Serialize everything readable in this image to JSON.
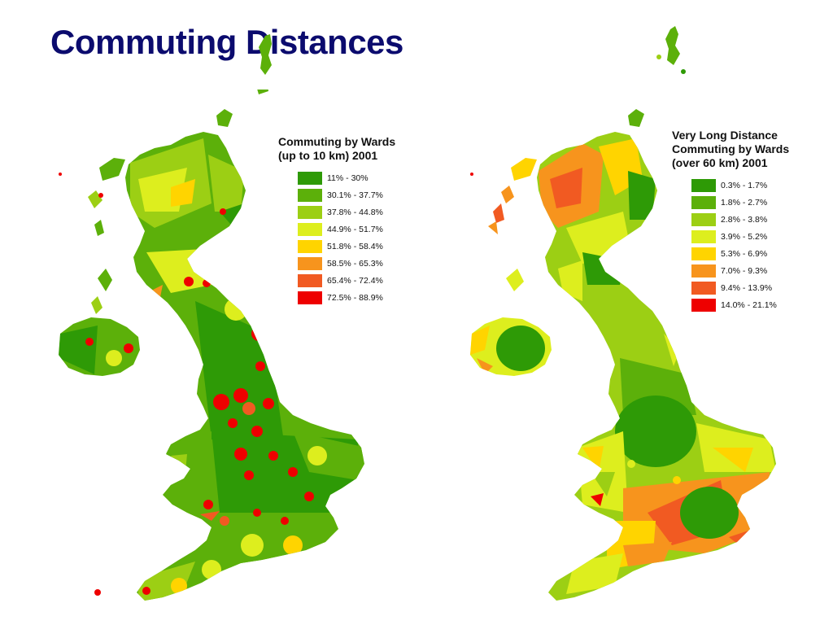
{
  "title": "Commuting Distances",
  "maps": [
    {
      "id": "short",
      "legend_title_lines": [
        "Commuting by Wards",
        "(up to 10 km) 2001"
      ],
      "classes": [
        {
          "label": "11% - 30%",
          "color": "#2e9a06"
        },
        {
          "label": "30.1% - 37.7%",
          "color": "#5cb00a"
        },
        {
          "label": "37.8% - 44.8%",
          "color": "#9ccf14"
        },
        {
          "label": "44.9% - 51.7%",
          "color": "#ddee1e"
        },
        {
          "label": "51.8% - 58.4%",
          "color": "#ffd400"
        },
        {
          "label": "58.5% - 65.3%",
          "color": "#f7941d"
        },
        {
          "label": "65.4% - 72.4%",
          "color": "#f15a22"
        },
        {
          "label": "72.5% - 88.9%",
          "color": "#ee0000"
        }
      ]
    },
    {
      "id": "long",
      "legend_title_lines": [
        "Very Long Distance",
        "Commuting by Wards",
        "(over 60 km) 2001"
      ],
      "classes": [
        {
          "label": "0.3% - 1.7%",
          "color": "#2e9a06"
        },
        {
          "label": "1.8% - 2.7%",
          "color": "#5cb00a"
        },
        {
          "label": "2.8% - 3.8%",
          "color": "#9ccf14"
        },
        {
          "label": "3.9% - 5.2%",
          "color": "#ddee1e"
        },
        {
          "label": "5.3% - 6.9%",
          "color": "#ffd400"
        },
        {
          "label": "7.0% - 9.3%",
          "color": "#f7941d"
        },
        {
          "label": "9.4% - 13.9%",
          "color": "#f15a22"
        },
        {
          "label": "14.0% - 21.1%",
          "color": "#ee0000"
        }
      ]
    }
  ]
}
